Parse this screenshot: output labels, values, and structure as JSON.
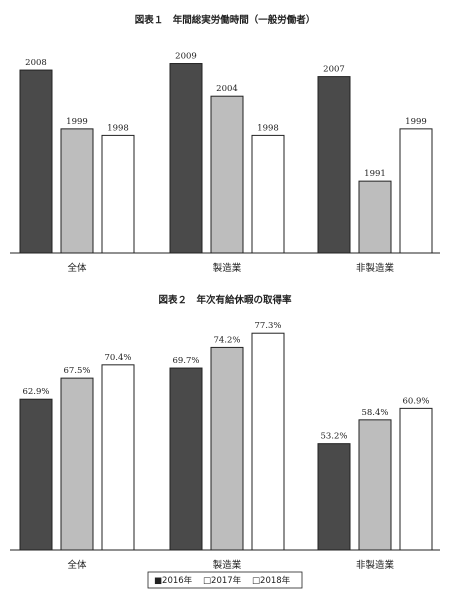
{
  "colors": {
    "y2016": "#4a4a4a",
    "y2017": "#bdbdbd",
    "y2018": "#ffffff",
    "stroke": "#222222"
  },
  "legend": {
    "items": [
      "■2016年",
      "□2017年",
      "□2018年"
    ]
  },
  "chart_data": [
    {
      "type": "bar",
      "title": "図表１　年間総実労働時間（一般労働者）",
      "categories": [
        "全体",
        "製造業",
        "非製造業"
      ],
      "series": [
        {
          "name": "2016年",
          "values": [
            2008,
            2009,
            2007
          ],
          "labels": [
            "2008",
            "2009",
            "2007"
          ]
        },
        {
          "name": "2017年",
          "values": [
            1999,
            2004,
            1991
          ],
          "labels": [
            "1999",
            "2004",
            "1991"
          ]
        },
        {
          "name": "2018年",
          "values": [
            1998,
            1998,
            1999
          ],
          "labels": [
            "1998",
            "1998",
            "1999"
          ]
        }
      ],
      "ylim": [
        1980,
        2010
      ]
    },
    {
      "type": "bar",
      "title": "図表２　年次有給休暇の取得率",
      "categories": [
        "全体",
        "製造業",
        "非製造業"
      ],
      "series": [
        {
          "name": "2016年",
          "values": [
            62.9,
            69.7,
            53.2
          ],
          "labels": [
            "62.9%",
            "69.7%",
            "53.2%"
          ]
        },
        {
          "name": "2017年",
          "values": [
            67.5,
            74.2,
            58.4
          ],
          "labels": [
            "67.5%",
            "74.2%",
            "58.4%"
          ]
        },
        {
          "name": "2018年",
          "values": [
            70.4,
            77.3,
            60.9
          ],
          "labels": [
            "70.4%",
            "77.3%",
            "60.9%"
          ]
        }
      ],
      "ylim": [
        30,
        78
      ]
    }
  ]
}
